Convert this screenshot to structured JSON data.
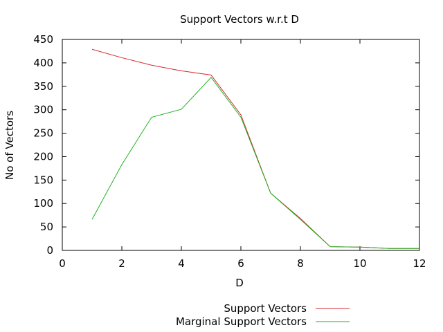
{
  "chart_data": {
    "type": "line",
    "title": "Support Vectors w.r.t D",
    "xlabel": "D",
    "ylabel": "No of Vectors",
    "xlim": [
      0,
      12
    ],
    "ylim": [
      0,
      450
    ],
    "x_ticks": [
      "0",
      "2",
      "4",
      "6",
      "8",
      "10",
      "12"
    ],
    "y_ticks": [
      "0",
      "50",
      "100",
      "150",
      "200",
      "250",
      "300",
      "350",
      "400",
      "450"
    ],
    "grid": false,
    "legend_position": "bottom-right, below plot",
    "series": [
      {
        "name": "Support Vectors",
        "color": "#d62728",
        "x": [
          1,
          2,
          3,
          4,
          5,
          6,
          7,
          8,
          9,
          10,
          11,
          12
        ],
        "y": [
          429,
          411,
          395,
          383,
          374,
          289,
          122,
          68,
          8,
          7,
          4,
          4
        ]
      },
      {
        "name": "Marginal Support Vectors",
        "color": "#22b322",
        "x": [
          1,
          2,
          3,
          4,
          5,
          6,
          7,
          8,
          9,
          10,
          11,
          12
        ],
        "y": [
          66,
          183,
          284,
          301,
          369,
          284,
          122,
          66,
          8,
          7,
          4,
          4
        ]
      }
    ]
  }
}
